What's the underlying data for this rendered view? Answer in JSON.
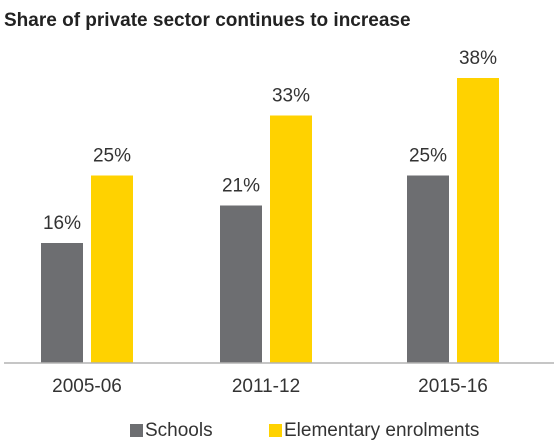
{
  "chart_data": {
    "type": "bar",
    "title": "Share of private sector continues to increase",
    "xlabel": "",
    "ylabel": "",
    "categories": [
      "2005-06",
      "2011-12",
      "2015-16"
    ],
    "series": [
      {
        "name": "Schools",
        "values": [
          16,
          21,
          25
        ],
        "labels": [
          "16%",
          "21%",
          "25%"
        ],
        "color": "#6d6e71"
      },
      {
        "name": "Elementary enrolments",
        "values": [
          25,
          33,
          38
        ],
        "labels": [
          "25%",
          "33%",
          "38%"
        ],
        "color": "#ffd200"
      }
    ],
    "ylim": [
      0,
      40
    ],
    "grid": false,
    "legend_position": "bottom",
    "axis_color": "#b3b3b3"
  }
}
